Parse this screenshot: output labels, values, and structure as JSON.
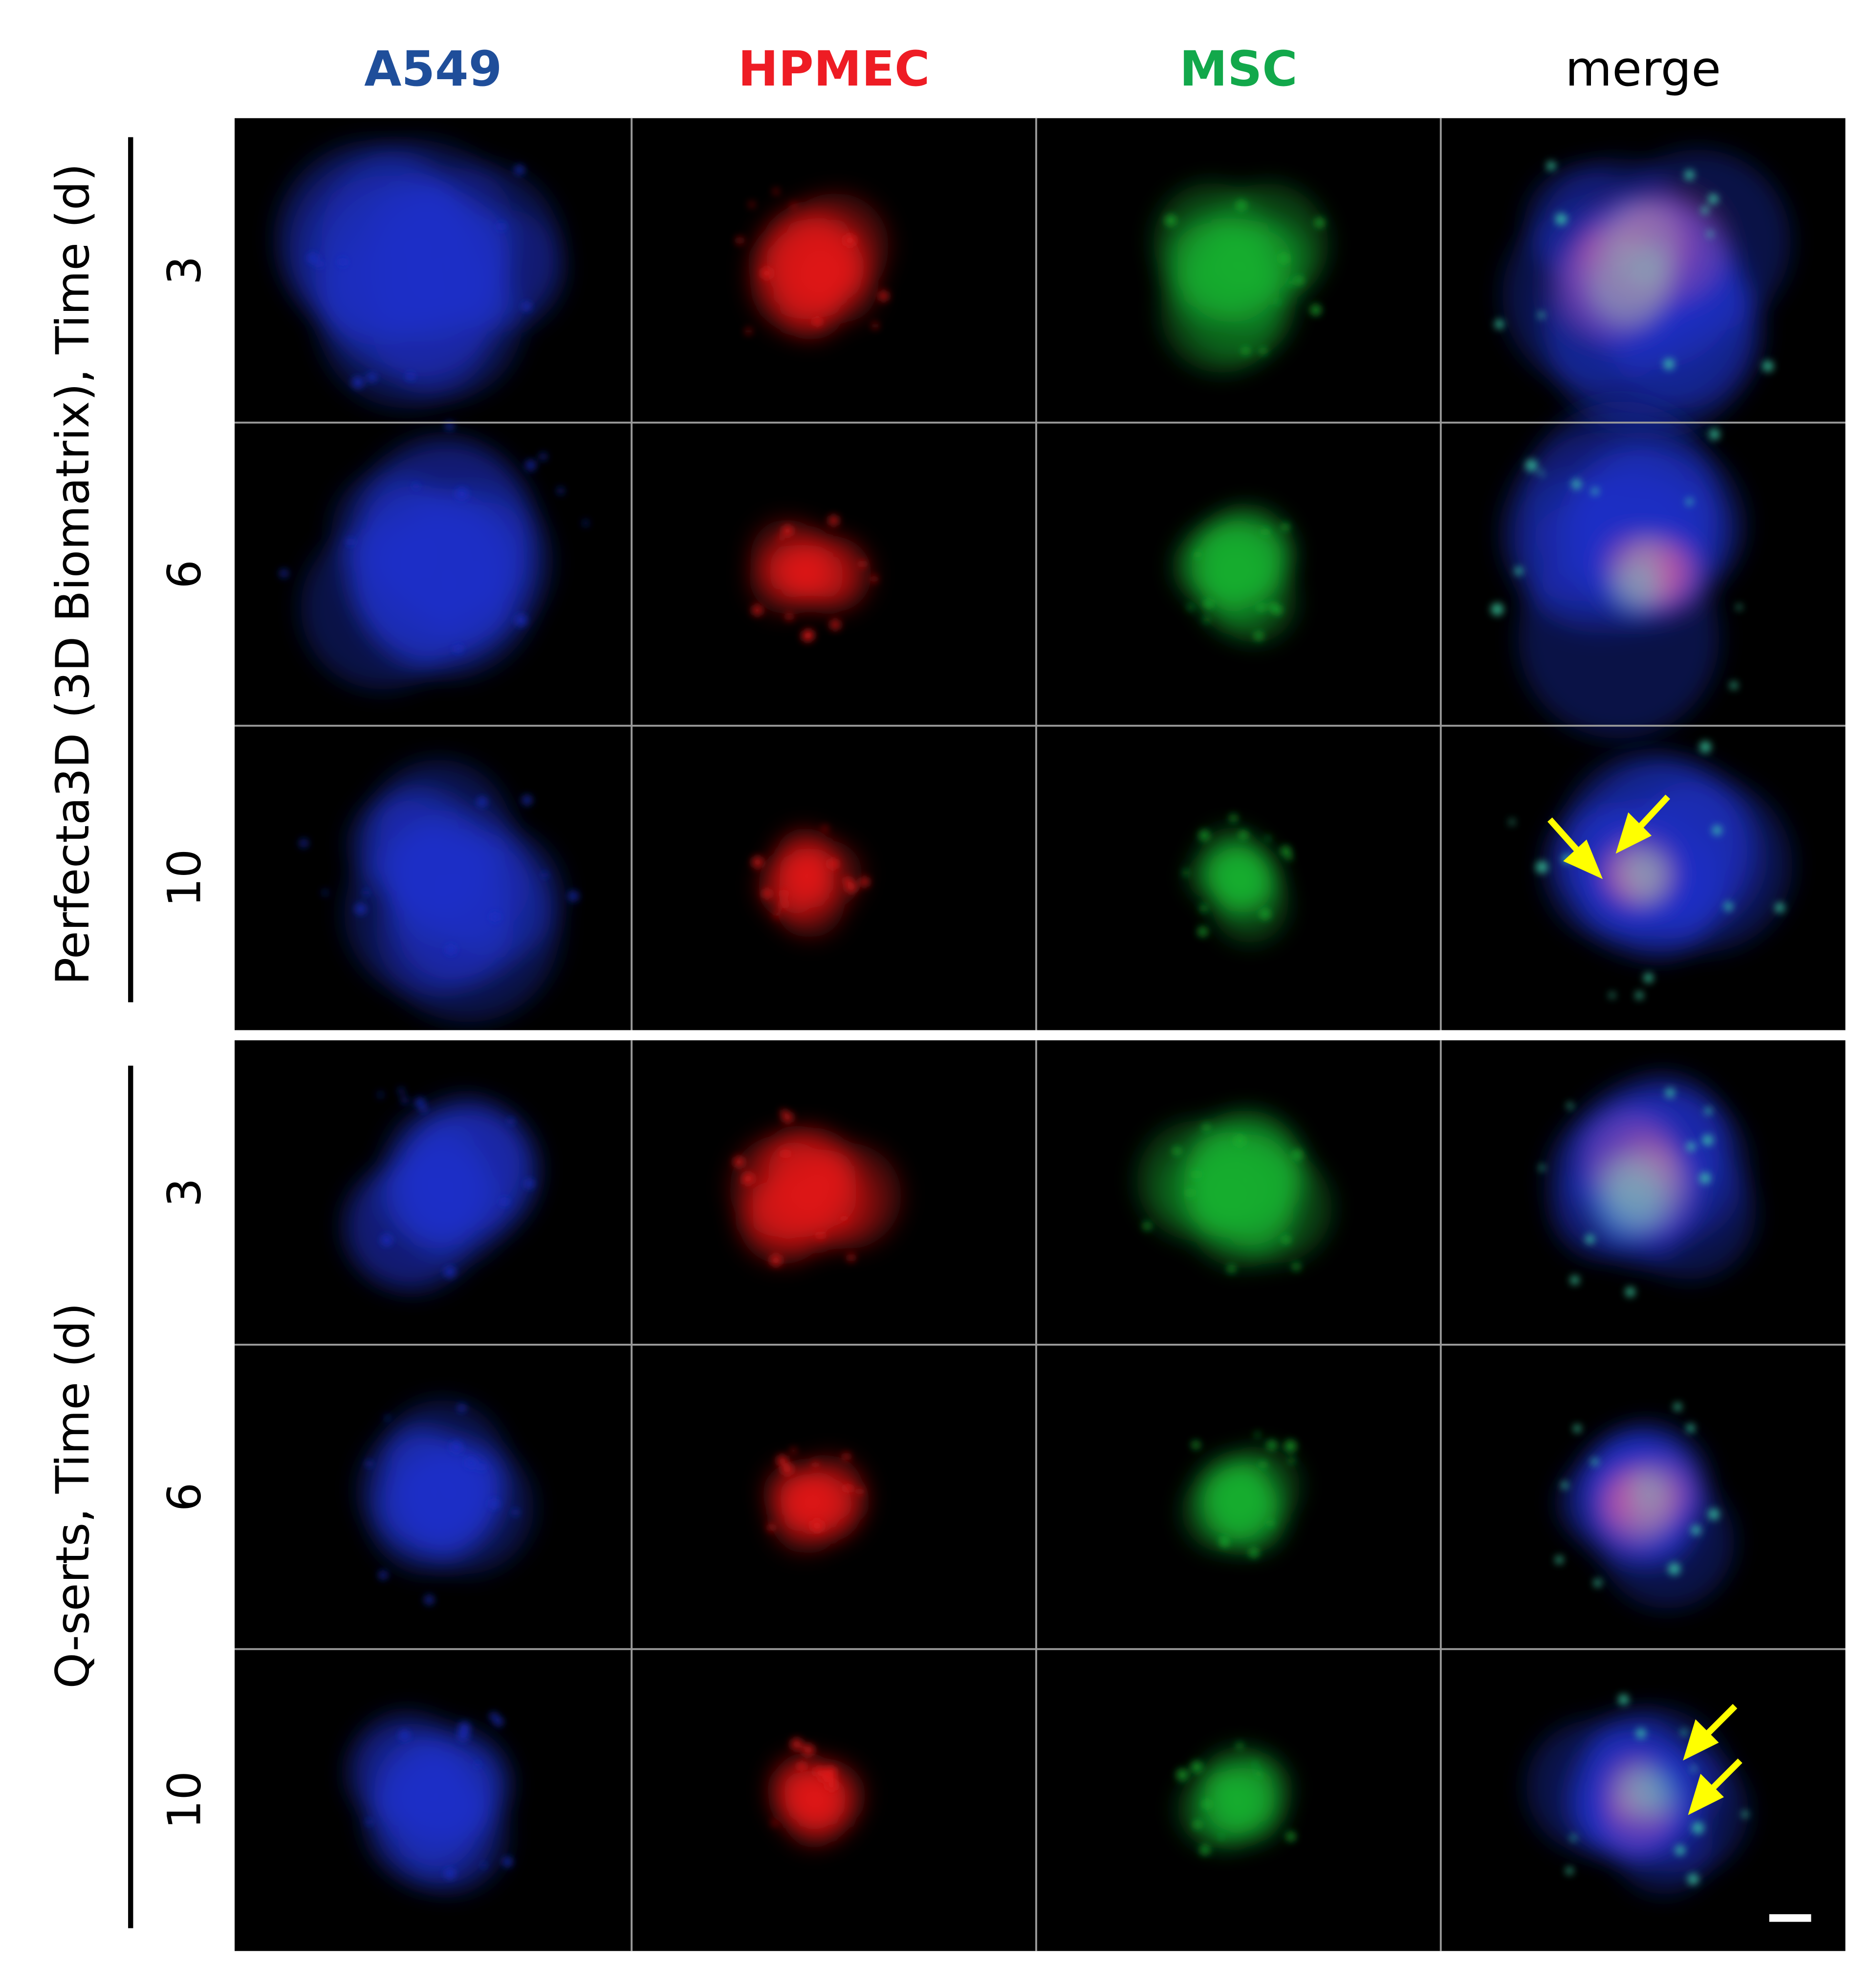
{
  "header": {
    "columns": [
      "A549",
      "HPMEC",
      "MSC",
      "merge"
    ]
  },
  "groups": [
    {
      "label": "Perfecta3D (3D Biomatrix), Time (d)",
      "rows": [
        "3",
        "6",
        "10"
      ]
    },
    {
      "label": "Q-serts, Time (d)",
      "rows": [
        "3",
        "6",
        "10"
      ]
    }
  ]
}
